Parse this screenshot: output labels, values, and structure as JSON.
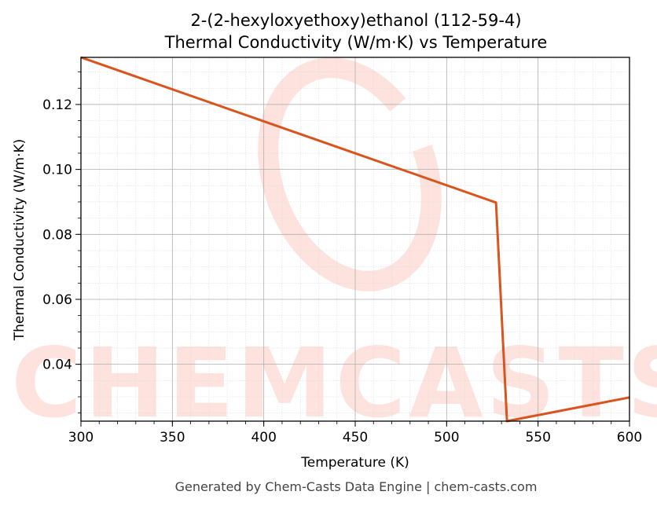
{
  "chart_data": {
    "type": "line",
    "title": "2-(2-hexyloxyethoxy)ethanol (112-59-4)",
    "subtitle": "Thermal Conductivity (W/m·K) vs Temperature",
    "xlabel": "Temperature (K)",
    "ylabel": "Thermal Conductivity (W/m·K)",
    "xlim": [
      300,
      600
    ],
    "ylim": [
      0.0225,
      0.1345
    ],
    "xticks": [
      300,
      350,
      400,
      450,
      500,
      550,
      600
    ],
    "yticks": [
      0.04,
      0.06,
      0.08,
      0.1,
      0.12
    ],
    "xtick_labels": [
      "300",
      "350",
      "400",
      "450",
      "500",
      "550",
      "600"
    ],
    "ytick_labels": [
      "0.04",
      "0.06",
      "0.08",
      "0.10",
      "0.12"
    ],
    "grid": true,
    "series": [
      {
        "color": "#d9541e",
        "x": [
          300,
          527,
          533,
          600
        ],
        "y": [
          0.1345,
          0.0898,
          0.0225,
          0.0298
        ]
      }
    ]
  },
  "watermark": {
    "text": "CHEMCASTS",
    "color": "#fde2dd"
  },
  "footer": "Generated by Chem-Casts Data Engine | chem-casts.com"
}
